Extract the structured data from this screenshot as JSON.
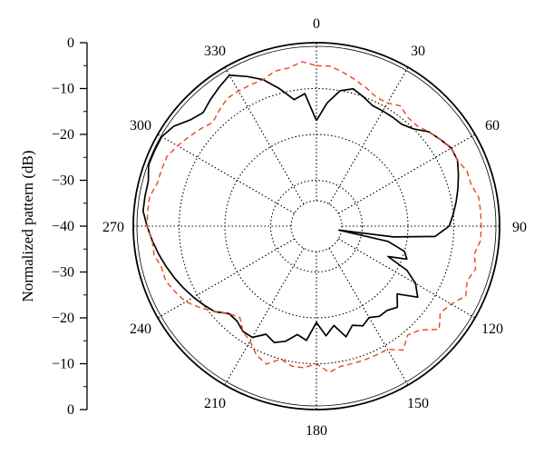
{
  "chart_data": {
    "type": "polar-line",
    "title": "",
    "ylabel": "Normalized pattern (dB)",
    "radial_ticks": [
      "0",
      "−10",
      "−20",
      "−30",
      "−40",
      "−30",
      "−20",
      "−10",
      "0"
    ],
    "radial_range_db": [
      -40,
      0
    ],
    "angle_ticks": [
      "0",
      "30",
      "60",
      "90",
      "120",
      "150",
      "180",
      "210",
      "240",
      "270",
      "300",
      "330"
    ],
    "angle_tick_values_deg": [
      0,
      30,
      60,
      90,
      120,
      150,
      180,
      210,
      240,
      270,
      300,
      330
    ],
    "grid": true,
    "legend": "none",
    "series": [
      {
        "style": "solid",
        "color": "#000000",
        "points": [
          [
            0,
            -17
          ],
          [
            5,
            -13
          ],
          [
            10,
            -10
          ],
          [
            15,
            -9
          ],
          [
            20,
            -10
          ],
          [
            25,
            -11
          ],
          [
            30,
            -11
          ],
          [
            35,
            -11
          ],
          [
            40,
            -11
          ],
          [
            45,
            -10
          ],
          [
            50,
            -8
          ],
          [
            55,
            -7
          ],
          [
            60,
            -6
          ],
          [
            65,
            -6
          ],
          [
            70,
            -7
          ],
          [
            75,
            -8
          ],
          [
            80,
            -9
          ],
          [
            85,
            -10
          ],
          [
            90,
            -11
          ],
          [
            95,
            -14
          ],
          [
            98,
            -23
          ],
          [
            100,
            -35
          ],
          [
            102,
            -24
          ],
          [
            106,
            -20
          ],
          [
            110,
            -19
          ],
          [
            113,
            -23
          ],
          [
            116,
            -18
          ],
          [
            120,
            -15
          ],
          [
            125,
            -13
          ],
          [
            130,
            -17
          ],
          [
            135,
            -15
          ],
          [
            140,
            -16
          ],
          [
            145,
            -16
          ],
          [
            150,
            -17
          ],
          [
            155,
            -16
          ],
          [
            160,
            -17
          ],
          [
            165,
            -15
          ],
          [
            170,
            -18
          ],
          [
            175,
            -16
          ],
          [
            180,
            -19
          ],
          [
            185,
            -15
          ],
          [
            190,
            -16
          ],
          [
            195,
            -14
          ],
          [
            200,
            -13
          ],
          [
            205,
            -14
          ],
          [
            210,
            -12
          ],
          [
            215,
            -12
          ],
          [
            220,
            -13
          ],
          [
            225,
            -13
          ],
          [
            230,
            -11
          ],
          [
            235,
            -10
          ],
          [
            240,
            -9
          ],
          [
            245,
            -8
          ],
          [
            250,
            -7
          ],
          [
            255,
            -6
          ],
          [
            260,
            -5
          ],
          [
            265,
            -4
          ],
          [
            270,
            -3
          ],
          [
            275,
            -2
          ],
          [
            280,
            -2
          ],
          [
            285,
            -2
          ],
          [
            290,
            -1
          ],
          [
            295,
            -1
          ],
          [
            300,
            -1
          ],
          [
            305,
            -2
          ],
          [
            310,
            -4
          ],
          [
            315,
            -5
          ],
          [
            320,
            -4
          ],
          [
            325,
            -3
          ],
          [
            330,
            -2
          ],
          [
            335,
            -4
          ],
          [
            340,
            -6
          ],
          [
            345,
            -9
          ],
          [
            350,
            -12
          ],
          [
            355,
            -11
          ],
          [
            360,
            -17
          ]
        ]
      },
      {
        "style": "dashed",
        "color": "#e8461c",
        "points": [
          [
            0,
            -5
          ],
          [
            5,
            -5
          ],
          [
            10,
            -6
          ],
          [
            15,
            -7
          ],
          [
            20,
            -8
          ],
          [
            25,
            -9
          ],
          [
            30,
            -9
          ],
          [
            35,
            -8
          ],
          [
            40,
            -9
          ],
          [
            45,
            -9
          ],
          [
            50,
            -8
          ],
          [
            55,
            -7
          ],
          [
            60,
            -6
          ],
          [
            65,
            -6
          ],
          [
            70,
            -5
          ],
          [
            75,
            -5
          ],
          [
            80,
            -4
          ],
          [
            85,
            -4
          ],
          [
            90,
            -4
          ],
          [
            95,
            -4
          ],
          [
            100,
            -5
          ],
          [
            105,
            -4
          ],
          [
            110,
            -5
          ],
          [
            115,
            -4
          ],
          [
            120,
            -6
          ],
          [
            125,
            -7
          ],
          [
            130,
            -5
          ],
          [
            135,
            -8
          ],
          [
            140,
            -9
          ],
          [
            145,
            -7
          ],
          [
            150,
            -9
          ],
          [
            155,
            -9
          ],
          [
            160,
            -9
          ],
          [
            165,
            -9
          ],
          [
            170,
            -9
          ],
          [
            175,
            -8
          ],
          [
            180,
            -10
          ],
          [
            185,
            -9
          ],
          [
            190,
            -9
          ],
          [
            195,
            -10
          ],
          [
            200,
            -8
          ],
          [
            205,
            -9
          ],
          [
            210,
            -11
          ],
          [
            215,
            -12
          ],
          [
            220,
            -14
          ],
          [
            225,
            -13
          ],
          [
            230,
            -11
          ],
          [
            235,
            -9
          ],
          [
            240,
            -7
          ],
          [
            245,
            -6
          ],
          [
            250,
            -5
          ],
          [
            255,
            -5
          ],
          [
            260,
            -4
          ],
          [
            265,
            -4
          ],
          [
            270,
            -3
          ],
          [
            275,
            -3
          ],
          [
            280,
            -3
          ],
          [
            285,
            -4
          ],
          [
            290,
            -4
          ],
          [
            295,
            -4
          ],
          [
            300,
            -5
          ],
          [
            305,
            -6
          ],
          [
            310,
            -7
          ],
          [
            315,
            -8
          ],
          [
            320,
            -7
          ],
          [
            325,
            -6
          ],
          [
            330,
            -6
          ],
          [
            335,
            -6
          ],
          [
            340,
            -6
          ],
          [
            345,
            -5
          ],
          [
            350,
            -5
          ],
          [
            355,
            -4
          ],
          [
            360,
            -5
          ]
        ]
      }
    ]
  }
}
